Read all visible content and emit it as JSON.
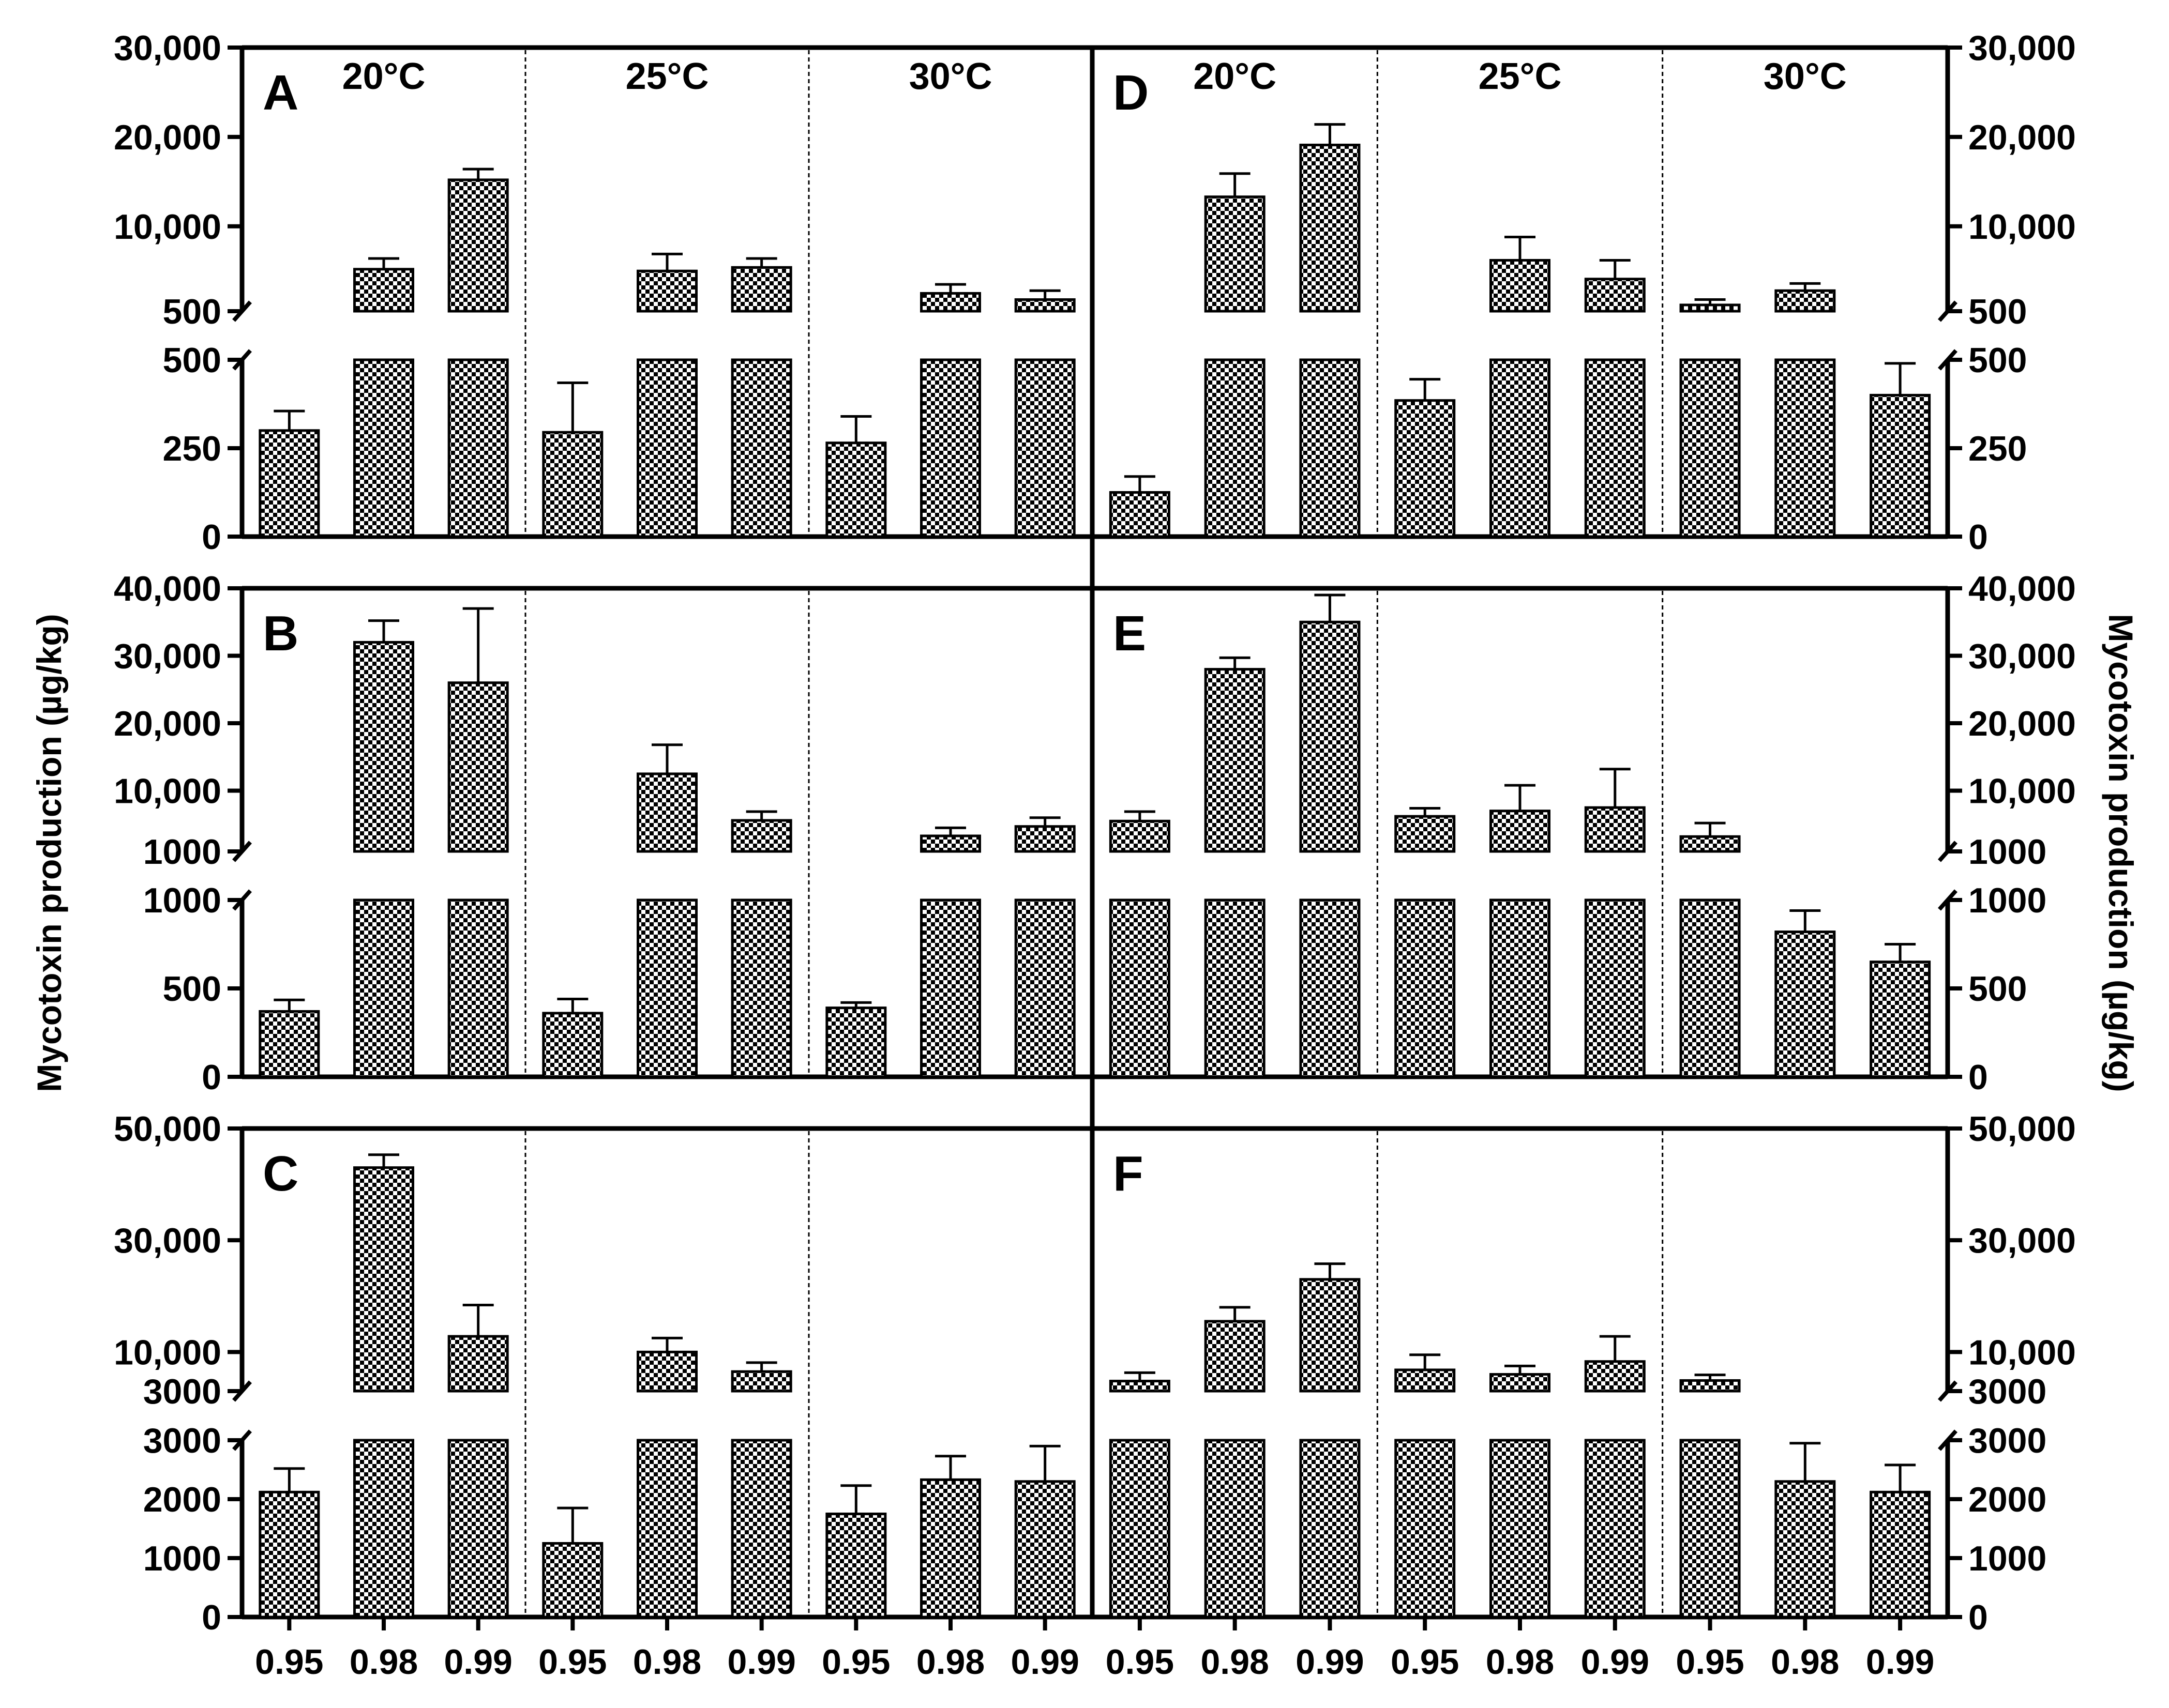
{
  "figure": {
    "left_axis_title": "Mycotoxin production (µg/kg)",
    "right_axis_title": "Mycotoxin production (µg/kg)",
    "temperatures": [
      "20°C",
      "25°C",
      "30°C"
    ],
    "x_tick_labels": [
      "0.95",
      "0.98",
      "0.99",
      "0.95",
      "0.98",
      "0.99",
      "0.95",
      "0.98",
      "0.99"
    ],
    "colors": {
      "bar_pattern_dark": "#000000",
      "bar_pattern_light": "#ffffff",
      "axis": "#000000"
    }
  },
  "chart_data": [
    {
      "panel": "A",
      "type": "bar",
      "axis_side": "left",
      "categories": [
        "0.95",
        "0.98",
        "0.99",
        "0.95",
        "0.98",
        "0.99",
        "0.95",
        "0.98",
        "0.99"
      ],
      "groups": [
        "20°C",
        "25°C",
        "30°C"
      ],
      "values": [
        300,
        5200,
        15200,
        295,
        5000,
        5400,
        265,
        2500,
        1800
      ],
      "errors": [
        55,
        1200,
        1200,
        140,
        1900,
        1000,
        75,
        1000,
        1000
      ],
      "lower": {
        "ylim": [
          0,
          500
        ],
        "ticks": [
          0,
          250,
          500
        ],
        "tick_labels": [
          "0",
          "250",
          "500"
        ]
      },
      "upper": {
        "ylim": [
          500,
          30000
        ],
        "ticks": [
          500,
          10000,
          20000,
          30000
        ],
        "tick_labels": [
          "500",
          "10,000",
          "20,000",
          "30,000"
        ]
      }
    },
    {
      "panel": "B",
      "type": "bar",
      "axis_side": "left",
      "categories": [
        "0.95",
        "0.98",
        "0.99",
        "0.95",
        "0.98",
        "0.99",
        "0.95",
        "0.98",
        "0.99"
      ],
      "groups": [
        "20°C",
        "25°C",
        "30°C"
      ],
      "values": [
        370,
        32000,
        26000,
        360,
        12500,
        5600,
        390,
        3300,
        4700
      ],
      "errors": [
        65,
        3200,
        11000,
        80,
        4300,
        1300,
        30,
        1200,
        1300
      ],
      "lower": {
        "ylim": [
          0,
          1000
        ],
        "ticks": [
          0,
          500,
          1000
        ],
        "tick_labels": [
          "0",
          "500",
          "1000"
        ]
      },
      "upper": {
        "ylim": [
          1000,
          40000
        ],
        "ticks": [
          1000,
          10000,
          20000,
          30000,
          40000
        ],
        "tick_labels": [
          "1000",
          "10,000",
          "20,000",
          "30,000",
          "40,000"
        ]
      }
    },
    {
      "panel": "C",
      "type": "bar",
      "axis_side": "left",
      "categories": [
        "0.95",
        "0.98",
        "0.99",
        "0.95",
        "0.98",
        "0.99",
        "0.95",
        "0.98",
        "0.99"
      ],
      "groups": [
        "20°C",
        "25°C",
        "30°C"
      ],
      "values": [
        2120,
        43000,
        12800,
        1250,
        10000,
        6500,
        1750,
        2330,
        2300
      ],
      "errors": [
        400,
        2300,
        5600,
        600,
        2500,
        1600,
        480,
        400,
        600
      ],
      "lower": {
        "ylim": [
          0,
          3000
        ],
        "ticks": [
          0,
          1000,
          2000,
          3000
        ],
        "tick_labels": [
          "0",
          "1000",
          "2000",
          "3000"
        ]
      },
      "upper": {
        "ylim": [
          3000,
          50000
        ],
        "ticks": [
          3000,
          10000,
          30000,
          50000
        ],
        "tick_labels": [
          "3000",
          "10,000",
          "30,000",
          "50,000"
        ]
      }
    },
    {
      "panel": "D",
      "type": "bar",
      "axis_side": "right",
      "categories": [
        "0.95",
        "0.98",
        "0.99",
        "0.95",
        "0.98",
        "0.99",
        "0.95",
        "0.98",
        "0.99"
      ],
      "groups": [
        "20°C",
        "25°C",
        "30°C"
      ],
      "values": [
        125,
        13300,
        19100,
        385,
        6200,
        4100,
        1200,
        2800,
        400
      ],
      "errors": [
        45,
        2600,
        2300,
        60,
        2600,
        2100,
        600,
        800,
        90
      ],
      "lower": {
        "ylim": [
          0,
          500
        ],
        "ticks": [
          0,
          250,
          500
        ],
        "tick_labels": [
          "0",
          "250",
          "500"
        ]
      },
      "upper": {
        "ylim": [
          500,
          30000
        ],
        "ticks": [
          500,
          10000,
          20000,
          30000
        ],
        "tick_labels": [
          "500",
          "10,000",
          "20,000",
          "30,000"
        ]
      }
    },
    {
      "panel": "E",
      "type": "bar",
      "axis_side": "right",
      "categories": [
        "0.95",
        "0.98",
        "0.99",
        "0.95",
        "0.98",
        "0.99",
        "0.95",
        "0.98",
        "0.99"
      ],
      "groups": [
        "20°C",
        "25°C",
        "30°C"
      ],
      "values": [
        5500,
        28000,
        35000,
        6200,
        7000,
        7500,
        3200,
        820,
        650
      ],
      "errors": [
        1400,
        1700,
        4000,
        1200,
        3800,
        5700,
        2000,
        120,
        100
      ],
      "lower": {
        "ylim": [
          0,
          1000
        ],
        "ticks": [
          0,
          500,
          1000
        ],
        "tick_labels": [
          "0",
          "500",
          "1000"
        ]
      },
      "upper": {
        "ylim": [
          1000,
          40000
        ],
        "ticks": [
          1000,
          10000,
          20000,
          30000,
          40000
        ],
        "tick_labels": [
          "1000",
          "10,000",
          "20,000",
          "30,000",
          "40,000"
        ]
      }
    },
    {
      "panel": "F",
      "type": "bar",
      "axis_side": "right",
      "categories": [
        "0.95",
        "0.98",
        "0.99",
        "0.95",
        "0.98",
        "0.99",
        "0.95",
        "0.98",
        "0.99"
      ],
      "groups": [
        "20°C",
        "25°C",
        "30°C"
      ],
      "values": [
        4800,
        15500,
        23000,
        6800,
        6000,
        8300,
        4900,
        2300,
        2120
      ],
      "errors": [
        1500,
        2500,
        2800,
        2700,
        1500,
        4500,
        1000,
        650,
        460
      ],
      "lower": {
        "ylim": [
          0,
          3000
        ],
        "ticks": [
          0,
          1000,
          2000,
          3000
        ],
        "tick_labels": [
          "0",
          "1000",
          "2000",
          "3000"
        ]
      },
      "upper": {
        "ylim": [
          3000,
          50000
        ],
        "ticks": [
          3000,
          10000,
          30000,
          50000
        ],
        "tick_labels": [
          "3000",
          "10,000",
          "30,000",
          "50,000"
        ]
      }
    }
  ]
}
